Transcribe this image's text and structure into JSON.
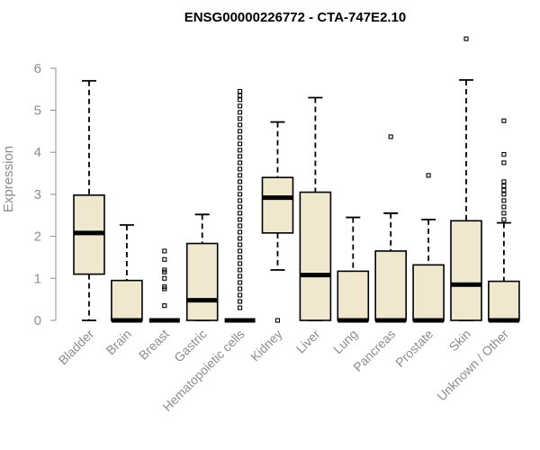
{
  "chart_data": {
    "type": "box",
    "title": "ENSG00000226772 - CTA-747E2.10",
    "xlabel": "",
    "ylabel": "Expression",
    "ylim": [
      0,
      6.8
    ],
    "yticks": [
      0,
      1,
      2,
      3,
      4,
      5,
      6
    ],
    "categories": [
      "Bladder",
      "Brain",
      "Breast",
      "Gastric",
      "Hematopoietic cells",
      "Kidney",
      "Liver",
      "Lung",
      "Pancreas",
      "Prostate",
      "Skin",
      "Unknown / Other"
    ],
    "box_fill": "#efe8cf",
    "series": [
      {
        "name": "Bladder",
        "min": 0.0,
        "q1": 1.1,
        "median": 2.08,
        "q3": 2.98,
        "max": 5.7,
        "outliers": []
      },
      {
        "name": "Brain",
        "min": 0.0,
        "q1": 0.0,
        "median": 0.0,
        "q3": 0.95,
        "max": 2.27,
        "outliers": []
      },
      {
        "name": "Breast",
        "min": 0.0,
        "q1": 0.0,
        "median": 0.0,
        "q3": 0.0,
        "max": 0.0,
        "outliers": [
          0.35,
          0.75,
          0.8,
          1.0,
          1.15,
          1.2,
          1.45,
          1.65
        ]
      },
      {
        "name": "Gastric",
        "min": 0.0,
        "q1": 0.0,
        "median": 0.48,
        "q3": 1.83,
        "max": 2.52,
        "outliers": []
      },
      {
        "name": "Hematopoietic cells",
        "min": 0.0,
        "q1": 0.0,
        "median": 0.0,
        "q3": 0.0,
        "max": 0.0,
        "outliers": [
          0.3,
          0.45,
          0.6,
          0.75,
          0.9,
          1.05,
          1.2,
          1.35,
          1.5,
          1.65,
          1.8,
          1.95,
          2.1,
          2.25,
          2.4,
          2.55,
          2.7,
          2.85,
          3.0,
          3.15,
          3.3,
          3.45,
          3.6,
          3.75,
          3.9,
          4.05,
          4.2,
          4.35,
          4.5,
          4.65,
          4.8,
          4.95,
          5.1,
          5.25,
          5.35,
          5.45
        ]
      },
      {
        "name": "Kidney",
        "min": 1.2,
        "q1": 2.08,
        "median": 2.92,
        "q3": 3.4,
        "max": 4.72,
        "outliers": [
          0.0
        ]
      },
      {
        "name": "Liver",
        "min": 0.0,
        "q1": 0.0,
        "median": 1.08,
        "q3": 3.05,
        "max": 5.3,
        "outliers": []
      },
      {
        "name": "Lung",
        "min": 0.0,
        "q1": 0.0,
        "median": 0.0,
        "q3": 1.17,
        "max": 2.45,
        "outliers": []
      },
      {
        "name": "Pancreas",
        "min": 0.0,
        "q1": 0.0,
        "median": 0.0,
        "q3": 1.65,
        "max": 2.55,
        "outliers": [
          4.37
        ]
      },
      {
        "name": "Prostate",
        "min": 0.0,
        "q1": 0.0,
        "median": 0.0,
        "q3": 1.32,
        "max": 2.4,
        "outliers": [
          3.45
        ]
      },
      {
        "name": "Skin",
        "min": 0.0,
        "q1": 0.0,
        "median": 0.85,
        "q3": 2.37,
        "max": 5.72,
        "outliers": [
          6.7
        ]
      },
      {
        "name": "Unknown / Other",
        "min": 0.0,
        "q1": 0.0,
        "median": 0.0,
        "q3": 0.93,
        "max": 2.32,
        "outliers": [
          2.4,
          2.55,
          2.7,
          2.85,
          3.0,
          3.1,
          3.2,
          3.3,
          3.75,
          3.95,
          4.75
        ]
      }
    ]
  }
}
